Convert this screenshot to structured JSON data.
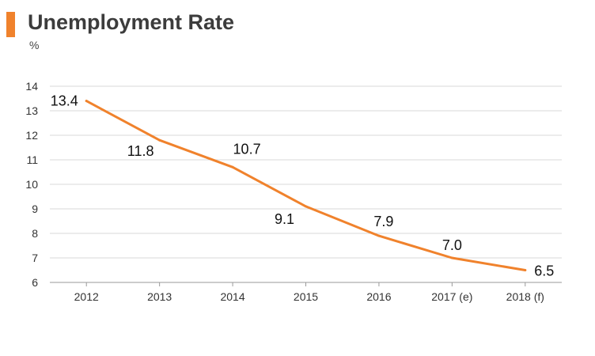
{
  "header": {
    "title": "Unemployment Rate",
    "unit": "%",
    "accent_color": "#f0822c"
  },
  "chart_data": {
    "type": "line",
    "title": "Unemployment Rate",
    "ylabel": "%",
    "xlabel": "",
    "categories": [
      "2012",
      "2013",
      "2014",
      "2015",
      "2016",
      "2017 (e)",
      "2018 (f)"
    ],
    "series": [
      {
        "values": [
          13.4,
          11.8,
          10.7,
          9.1,
          7.9,
          7.0,
          6.5
        ],
        "labels": [
          "13.4",
          "11.8",
          "10.7",
          "9.1",
          "7.9",
          "7.0",
          "6.5"
        ],
        "color": "#f0822c"
      }
    ],
    "ylim": [
      6,
      14
    ],
    "yticks": [
      6,
      7,
      8,
      9,
      10,
      11,
      12,
      13,
      14
    ],
    "grid": true,
    "legend": "none"
  }
}
